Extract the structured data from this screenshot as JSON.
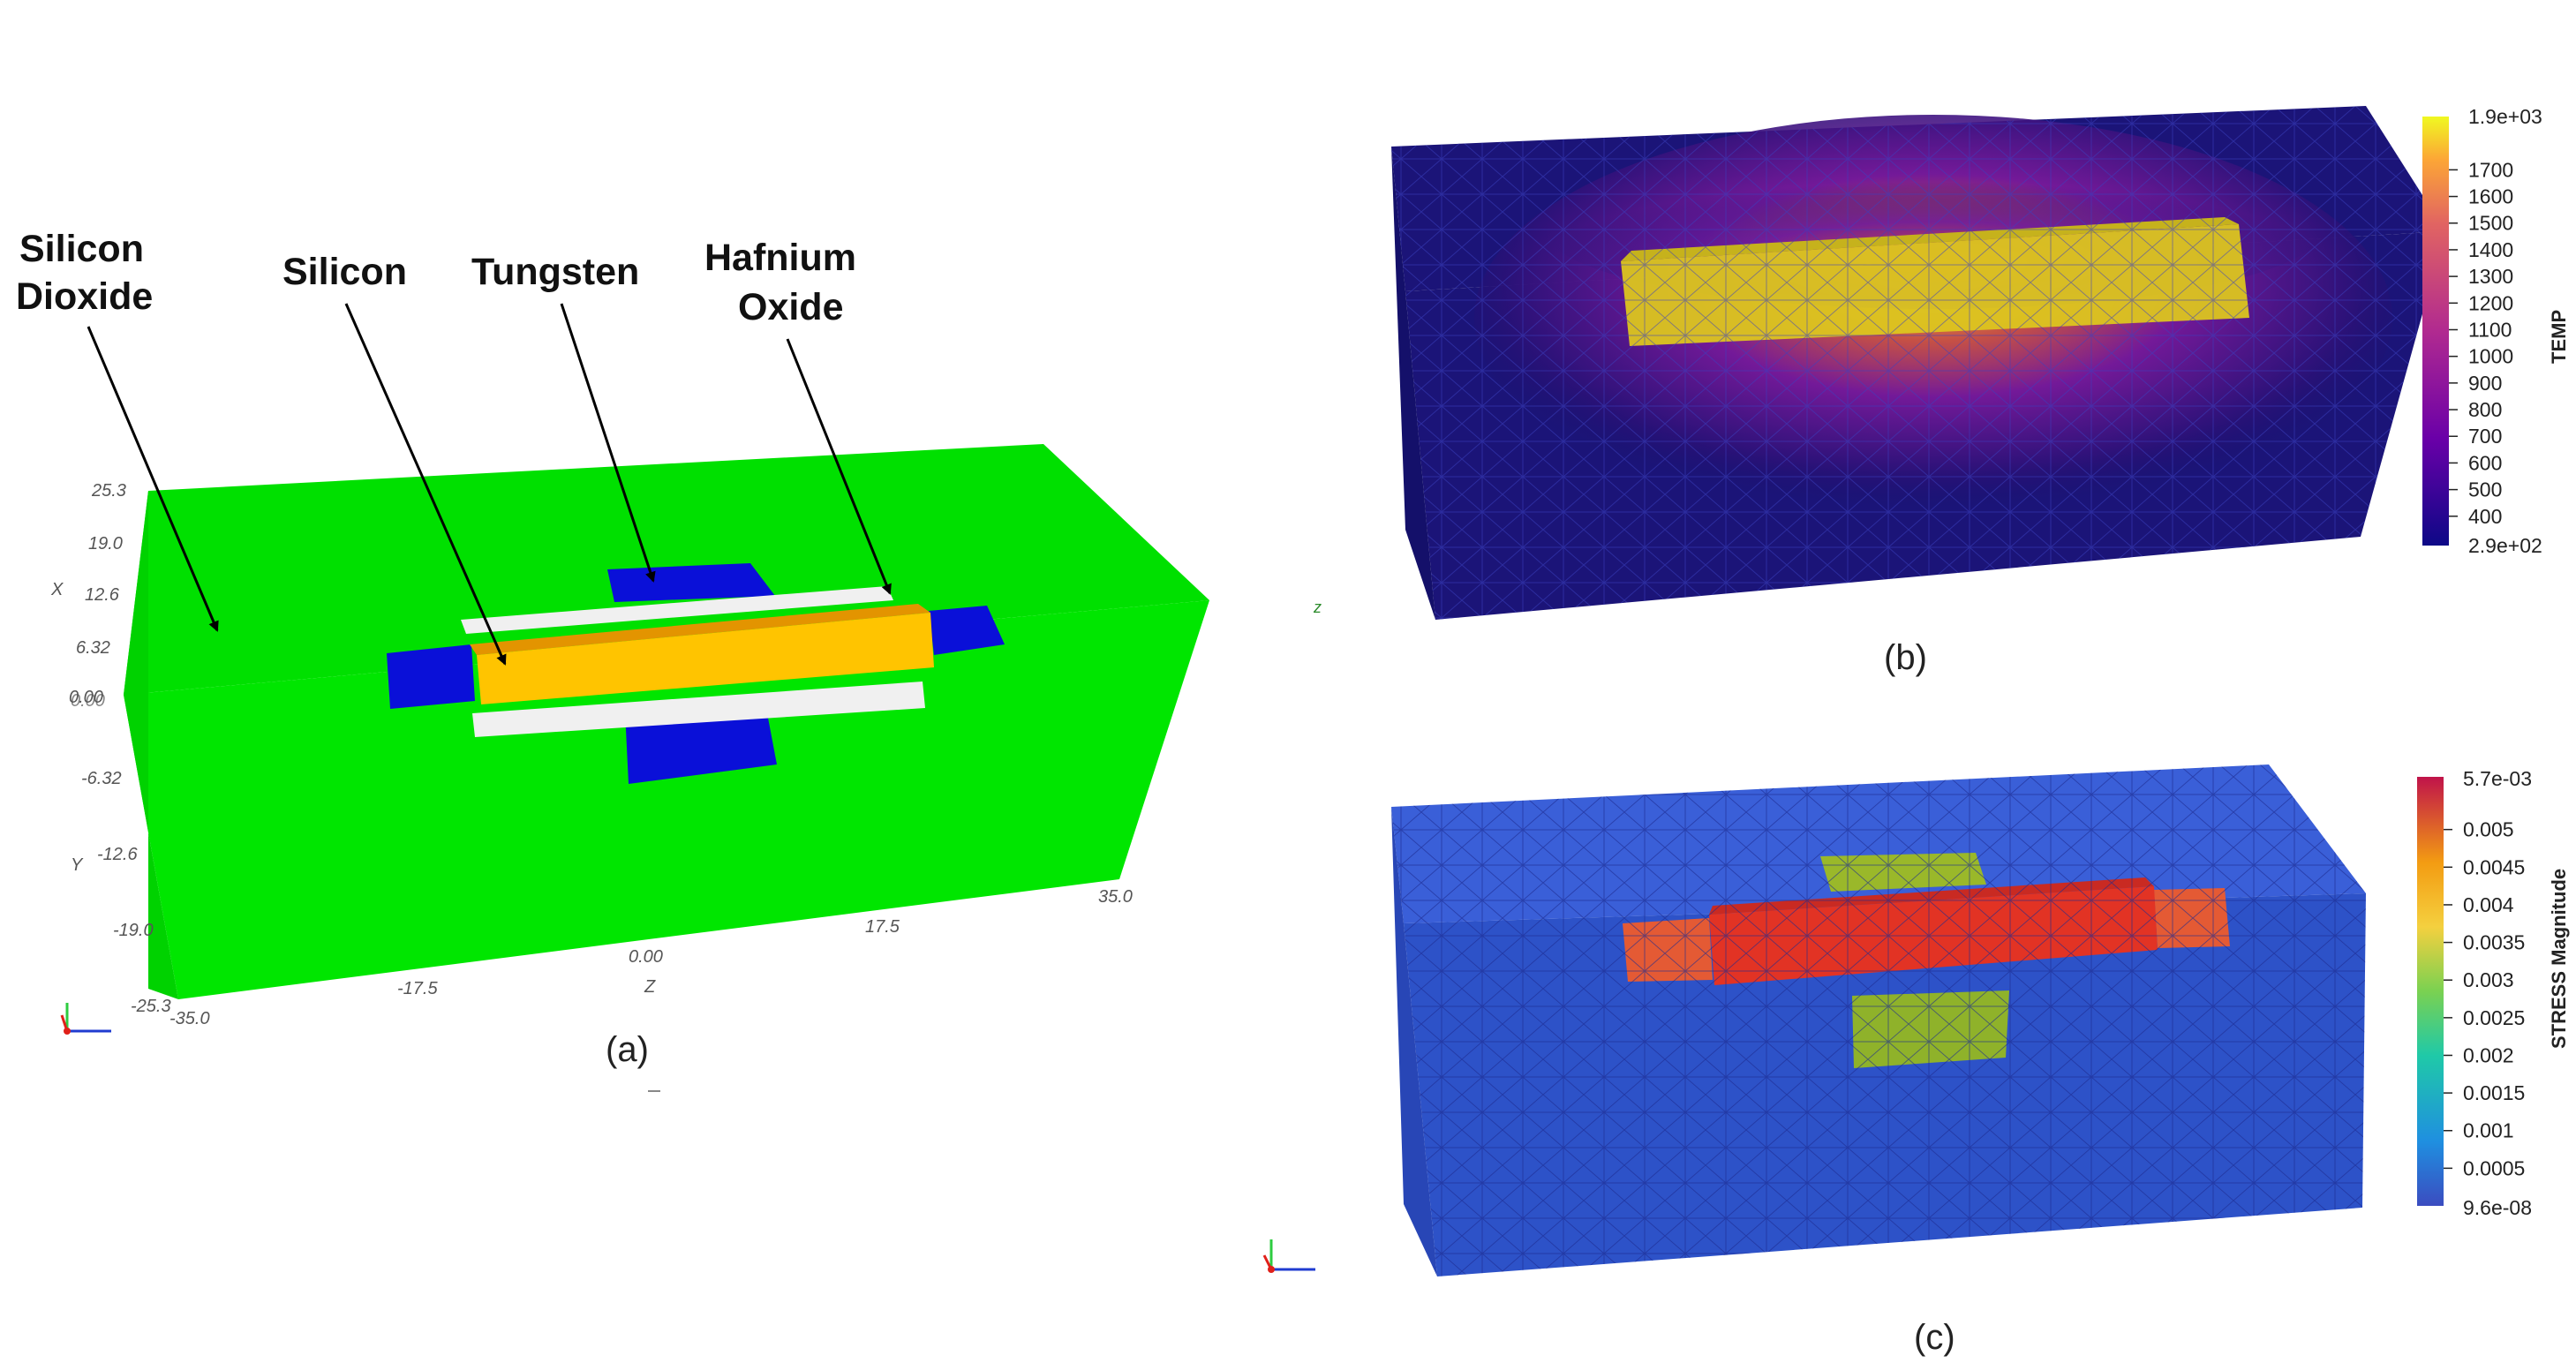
{
  "panel_a": {
    "caption": "(a)",
    "materials": {
      "silicon_dioxide_line1": "Silicon",
      "silicon_dioxide_line2": "Dioxide",
      "silicon": "Silicon",
      "tungsten": "Tungsten",
      "hafnium_line1": "Hafnium",
      "hafnium_line2": "Oxide"
    },
    "x_axis_label": "X",
    "y_axis_label": "Y",
    "z_axis_label": "Z",
    "x_ticks": [
      "25.3",
      "19.0",
      "12.6",
      "6.32",
      "0.00"
    ],
    "y_ticks": [
      "-6.32",
      "-12.6",
      "-19.0",
      "-25.3"
    ],
    "z_ticks": [
      "-35.0",
      "-17.5",
      "0.00",
      "17.5",
      "35.0"
    ],
    "overlap_tick": "0.00",
    "colors": {
      "oxide": "#00e600",
      "tungsten": "#0a10d8",
      "silicon": "#ffc400",
      "hafnia": "#f0f0f0"
    }
  },
  "panel_b": {
    "caption": "(b)",
    "axis_glyph": "z",
    "colorbar": {
      "title": "TEMP",
      "max_label": "1.9e+03",
      "min_label": "2.9e+02",
      "ticks": [
        "1700",
        "1600",
        "1500",
        "1400",
        "1300",
        "1200",
        "1100",
        "1000",
        "900",
        "800",
        "700",
        "600",
        "500",
        "400"
      ],
      "range": [
        290,
        1900
      ],
      "tick_values": [
        1700,
        1600,
        1500,
        1400,
        1300,
        1200,
        1100,
        1000,
        900,
        800,
        700,
        600,
        500,
        400
      ]
    }
  },
  "panel_c": {
    "caption": "(c)",
    "colorbar": {
      "title": "STRESS Magnitude",
      "max_label": "5.7e-03",
      "min_label": "9.6e-08",
      "ticks": [
        "0.005",
        "0.0045",
        "0.004",
        "0.0035",
        "0.003",
        "0.0025",
        "0.002",
        "0.0015",
        "0.001",
        "0.0005"
      ],
      "range": [
        9.6e-08,
        0.0057
      ],
      "tick_values": [
        0.005,
        0.0045,
        0.004,
        0.0035,
        0.003,
        0.0025,
        0.002,
        0.0015,
        0.001,
        0.0005
      ]
    }
  }
}
